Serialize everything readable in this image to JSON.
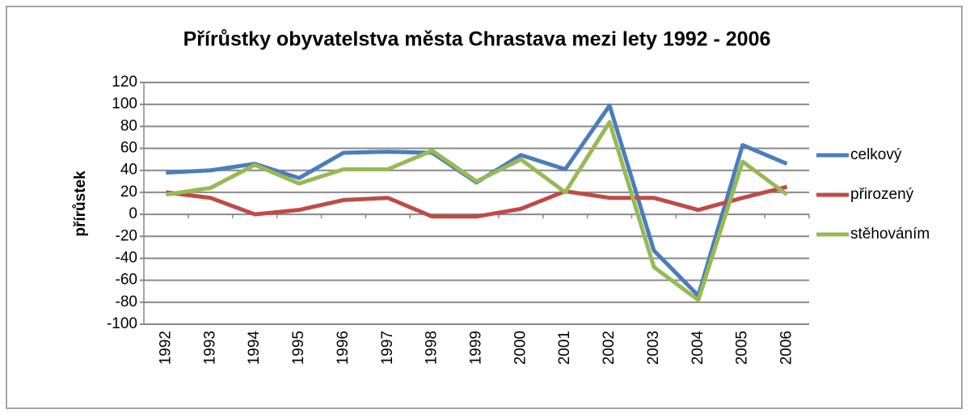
{
  "chart_data": {
    "type": "line",
    "title": "Přírůstky obyvatelstva města Chrastava mezi lety 1992 - 2006",
    "y_label": "přírůstek",
    "categories": [
      "1992",
      "1993",
      "1994",
      "1995",
      "1996",
      "1997",
      "1998",
      "1999",
      "2000",
      "2001",
      "2002",
      "2003",
      "2004",
      "2005",
      "2006"
    ],
    "series": [
      {
        "name": "celkový",
        "color": "#4a7ebb",
        "values": [
          38,
          40,
          46,
          33,
          56,
          57,
          56,
          29,
          54,
          41,
          99,
          -33,
          -74,
          63,
          46
        ]
      },
      {
        "name": "přirozený",
        "color": "#be4b48",
        "values": [
          20,
          15,
          0,
          4,
          13,
          15,
          -2,
          -2,
          5,
          21,
          15,
          15,
          4,
          15,
          25
        ]
      },
      {
        "name": "stěhováním",
        "color": "#98b954",
        "values": [
          18,
          24,
          45,
          28,
          41,
          41,
          58,
          30,
          50,
          20,
          84,
          -48,
          -78,
          48,
          18
        ]
      }
    ],
    "ylim": [
      -100,
      120
    ],
    "yticks": [
      -100,
      -80,
      -60,
      -40,
      -20,
      0,
      20,
      40,
      60,
      80,
      100,
      120
    ],
    "grid": true,
    "legend": "right"
  }
}
